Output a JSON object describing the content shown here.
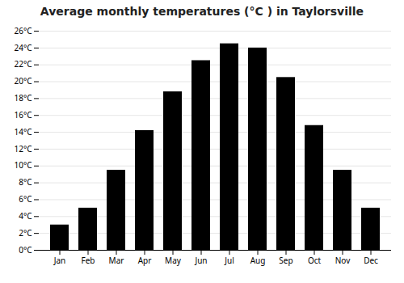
{
  "chart_data": {
    "type": "bar",
    "title": "Average monthly temperatures (°C ) in Taylorsville",
    "categories": [
      "Jan",
      "Feb",
      "Mar",
      "Apr",
      "May",
      "Jun",
      "Jul",
      "Aug",
      "Sep",
      "Oct",
      "Nov",
      "Dec"
    ],
    "values": [
      3.0,
      5.0,
      9.5,
      14.2,
      18.8,
      22.5,
      24.5,
      24.0,
      20.5,
      14.8,
      9.5,
      5.0
    ],
    "ylim": [
      0,
      26
    ],
    "yticks": [
      {
        "value": 0,
        "label": "0°C"
      },
      {
        "value": 2,
        "label": "2°C"
      },
      {
        "value": 4,
        "label": "4°C"
      },
      {
        "value": 6,
        "label": "6°C"
      },
      {
        "value": 8,
        "label": "8°C"
      },
      {
        "value": 10,
        "label": "10°C"
      },
      {
        "value": 12,
        "label": "12°C"
      },
      {
        "value": 14,
        "label": "14°C"
      },
      {
        "value": 16,
        "label": "16°C"
      },
      {
        "value": 18,
        "label": "18°C"
      },
      {
        "value": 20,
        "label": "20°C"
      },
      {
        "value": 22,
        "label": "22°C"
      },
      {
        "value": 24,
        "label": "24°C"
      },
      {
        "value": 26,
        "label": "26°C"
      }
    ],
    "grid": true
  }
}
